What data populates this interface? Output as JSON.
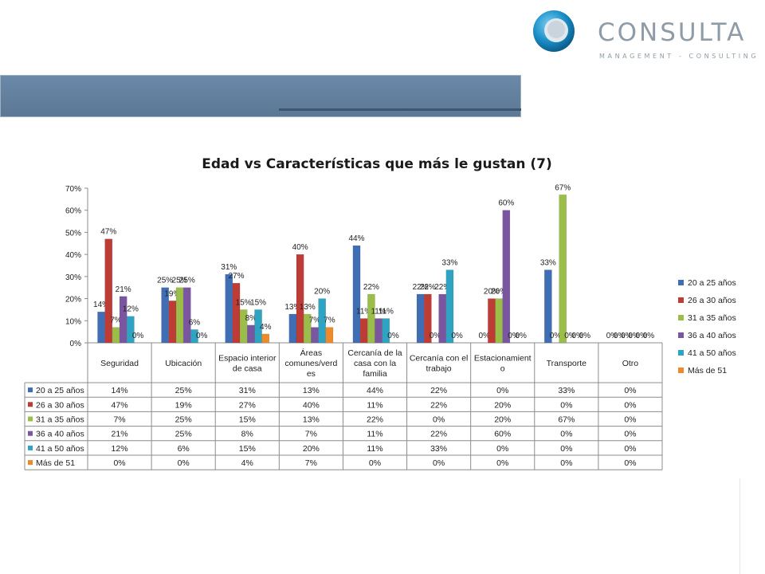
{
  "brand": {
    "name": "CONSULTA",
    "tagline": "MANAGEMENT - CONSULTING",
    "logo_icon": "circle-swirl-logo-icon",
    "colors": {
      "ring": "#1b8fc8",
      "text": "#8f9ca8",
      "banner": "#5f7c9a"
    }
  },
  "chart_data": {
    "type": "bar",
    "title": "Edad vs Características que más le gustan (7)",
    "categories": [
      "Seguridad",
      "Ubicación",
      "Espacio interior de casa",
      "Áreas comunes/verdes",
      "Cercanía de la casa con la familia",
      "Cercanía con el trabajo",
      "Estacionamiento",
      "Transporte",
      "Otro"
    ],
    "category_labels": [
      [
        "Seguridad"
      ],
      [
        "Ubicación"
      ],
      [
        "Espacio interior",
        "de casa"
      ],
      [
        "Áreas",
        "comunes/verd",
        "es"
      ],
      [
        "Cercanía de la",
        "casa con la",
        "familia"
      ],
      [
        "Cercanía con el",
        "trabajo"
      ],
      [
        "Estacionamient",
        "o"
      ],
      [
        "Transporte"
      ],
      [
        "Otro"
      ]
    ],
    "series": [
      {
        "name": "20 a 25 años",
        "color": "#3f6eb5",
        "values": [
          14,
          25,
          31,
          13,
          44,
          22,
          0,
          33,
          0
        ]
      },
      {
        "name": "26 a 30 años",
        "color": "#be3c36",
        "values": [
          47,
          19,
          27,
          40,
          11,
          22,
          20,
          0,
          0
        ]
      },
      {
        "name": "31 a 35 años",
        "color": "#9bbd49",
        "values": [
          7,
          25,
          15,
          13,
          22,
          0,
          20,
          67,
          0
        ]
      },
      {
        "name": "36 a 40 años",
        "color": "#7a56a0",
        "values": [
          21,
          25,
          8,
          7,
          11,
          22,
          60,
          0,
          0
        ]
      },
      {
        "name": "41 a 50 años",
        "color": "#2fa3c2",
        "values": [
          12,
          6,
          15,
          20,
          11,
          33,
          0,
          0,
          0
        ]
      },
      {
        "name": "Más de 51",
        "color": "#ee8a2a",
        "values": [
          0,
          0,
          4,
          7,
          0,
          0,
          0,
          0,
          0
        ]
      }
    ],
    "ylim": [
      0,
      70
    ],
    "yticks": [
      0,
      10,
      20,
      30,
      40,
      50,
      60,
      70
    ],
    "value_suffix": "%",
    "grid": false,
    "legend": "right",
    "data_table": true
  }
}
